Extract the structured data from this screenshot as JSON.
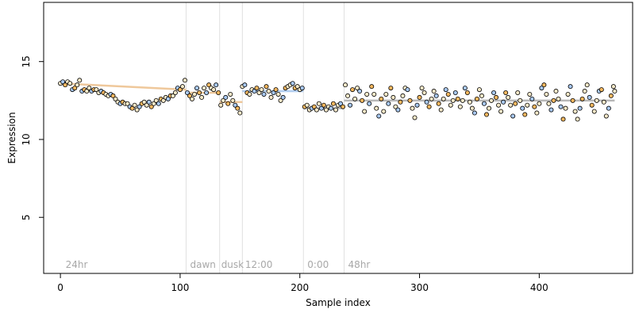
{
  "chart_data": {
    "type": "scatter",
    "title": "",
    "xlabel": "Sample index",
    "ylabel": "Expression",
    "xlim": [
      -14,
      478
    ],
    "ylim": [
      1.4,
      18.8
    ],
    "xticks": [
      0,
      100,
      200,
      300,
      400
    ],
    "yticks": [
      5,
      10,
      15
    ],
    "grid": false,
    "vlines": [
      105,
      133,
      152,
      203,
      237
    ],
    "annotations": [
      {
        "x": 3,
        "label": "24hr"
      },
      {
        "x": 107,
        "label": "dawn"
      },
      {
        "x": 133,
        "label": "dusk"
      },
      {
        "x": 153,
        "label": "12:00"
      },
      {
        "x": 205,
        "label": "0:00"
      },
      {
        "x": 239,
        "label": "48hr"
      }
    ],
    "colors": {
      "point_outline": "#000000",
      "point_fill_light": "#f4e8c8",
      "point_fill_orange": "#f4b860",
      "point_fill_blue": "#a8c8f0",
      "vline": "#e0e0e0",
      "annotation_text": "#a8a8a8",
      "trend_orange": "#e8b070",
      "trend_blue": "#90b8e8",
      "trend_gray": "#9a9a9a"
    },
    "series": [
      {
        "segments": [
          {
            "x": [
              0,
              105
            ],
            "y": [
              13.6,
              13.2
            ],
            "color": "orange"
          },
          {
            "x": [
              105,
              133
            ],
            "y": [
              13.0,
              13.0
            ],
            "color": "orange"
          },
          {
            "x": [
              133,
              152
            ],
            "y": [
              12.4,
              12.4
            ],
            "color": "orange"
          },
          {
            "x": [
              152,
              203
            ],
            "y": [
              13.1,
              13.1
            ],
            "color": "blue"
          },
          {
            "x": [
              203,
              237
            ],
            "y": [
              12.0,
              12.0
            ],
            "color": "gray"
          },
          {
            "x": [
              237,
              463
            ],
            "y": [
              12.5,
              12.5
            ],
            "color": "gray"
          }
        ],
        "points": [
          [
            0,
            13.6
          ],
          [
            2,
            13.7
          ],
          [
            4,
            13.5
          ],
          [
            6,
            13.7
          ],
          [
            8,
            13.6
          ],
          [
            10,
            13.2
          ],
          [
            12,
            13.3
          ],
          [
            14,
            13.5
          ],
          [
            16,
            13.8
          ],
          [
            18,
            13.1
          ],
          [
            20,
            13.2
          ],
          [
            22,
            13.1
          ],
          [
            24,
            13.3
          ],
          [
            26,
            13.1
          ],
          [
            28,
            13.2
          ],
          [
            30,
            13.2
          ],
          [
            32,
            13.0
          ],
          [
            34,
            13.1
          ],
          [
            36,
            13.0
          ],
          [
            38,
            12.9
          ],
          [
            40,
            12.8
          ],
          [
            42,
            12.9
          ],
          [
            44,
            12.8
          ],
          [
            46,
            12.6
          ],
          [
            48,
            12.4
          ],
          [
            50,
            12.3
          ],
          [
            52,
            12.4
          ],
          [
            54,
            12.3
          ],
          [
            56,
            12.3
          ],
          [
            58,
            12.1
          ],
          [
            60,
            12.0
          ],
          [
            62,
            12.2
          ],
          [
            64,
            11.9
          ],
          [
            66,
            12.1
          ],
          [
            68,
            12.3
          ],
          [
            70,
            12.4
          ],
          [
            72,
            12.2
          ],
          [
            74,
            12.4
          ],
          [
            76,
            12.1
          ],
          [
            78,
            12.3
          ],
          [
            80,
            12.5
          ],
          [
            82,
            12.3
          ],
          [
            84,
            12.6
          ],
          [
            86,
            12.5
          ],
          [
            88,
            12.7
          ],
          [
            90,
            12.6
          ],
          [
            92,
            12.8
          ],
          [
            94,
            12.8
          ],
          [
            96,
            13.0
          ],
          [
            98,
            13.3
          ],
          [
            100,
            13.2
          ],
          [
            102,
            13.4
          ],
          [
            104,
            13.8
          ],
          [
            106,
            13.0
          ],
          [
            108,
            12.8
          ],
          [
            110,
            12.6
          ],
          [
            112,
            12.9
          ],
          [
            114,
            13.3
          ],
          [
            116,
            13.0
          ],
          [
            118,
            12.7
          ],
          [
            120,
            13.3
          ],
          [
            122,
            13.0
          ],
          [
            124,
            13.5
          ],
          [
            126,
            13.3
          ],
          [
            128,
            13.2
          ],
          [
            130,
            13.5
          ],
          [
            132,
            13.0
          ],
          [
            134,
            12.2
          ],
          [
            136,
            12.5
          ],
          [
            138,
            12.7
          ],
          [
            140,
            12.3
          ],
          [
            142,
            12.9
          ],
          [
            144,
            12.5
          ],
          [
            146,
            12.2
          ],
          [
            148,
            12.0
          ],
          [
            150,
            11.7
          ],
          [
            152,
            13.4
          ],
          [
            154,
            13.5
          ],
          [
            156,
            13.0
          ],
          [
            158,
            12.9
          ],
          [
            160,
            13.2
          ],
          [
            162,
            13.1
          ],
          [
            164,
            13.3
          ],
          [
            166,
            13.0
          ],
          [
            168,
            13.2
          ],
          [
            170,
            12.9
          ],
          [
            172,
            13.4
          ],
          [
            174,
            13.1
          ],
          [
            176,
            12.7
          ],
          [
            178,
            13.0
          ],
          [
            180,
            13.2
          ],
          [
            182,
            12.9
          ],
          [
            184,
            12.5
          ],
          [
            186,
            12.7
          ],
          [
            188,
            13.3
          ],
          [
            190,
            13.4
          ],
          [
            192,
            13.5
          ],
          [
            194,
            13.6
          ],
          [
            196,
            13.3
          ],
          [
            198,
            13.4
          ],
          [
            200,
            13.2
          ],
          [
            202,
            13.3
          ],
          [
            204,
            12.1
          ],
          [
            206,
            12.2
          ],
          [
            208,
            11.9
          ],
          [
            210,
            12.0
          ],
          [
            212,
            12.1
          ],
          [
            214,
            11.9
          ],
          [
            216,
            12.3
          ],
          [
            218,
            12.0
          ],
          [
            220,
            12.2
          ],
          [
            222,
            11.9
          ],
          [
            224,
            12.1
          ],
          [
            226,
            12.0
          ],
          [
            228,
            12.3
          ],
          [
            230,
            11.9
          ],
          [
            232,
            12.2
          ],
          [
            234,
            12.3
          ],
          [
            236,
            12.1
          ],
          [
            238,
            13.5
          ],
          [
            240,
            12.8
          ],
          [
            242,
            12.2
          ],
          [
            244,
            13.2
          ],
          [
            246,
            12.6
          ],
          [
            248,
            13.3
          ],
          [
            250,
            13.1
          ],
          [
            252,
            12.5
          ],
          [
            254,
            11.8
          ],
          [
            256,
            12.9
          ],
          [
            258,
            12.3
          ],
          [
            260,
            13.4
          ],
          [
            262,
            12.9
          ],
          [
            264,
            12.0
          ],
          [
            266,
            11.5
          ],
          [
            268,
            12.6
          ],
          [
            270,
            11.8
          ],
          [
            272,
            12.9
          ],
          [
            274,
            12.3
          ],
          [
            276,
            13.3
          ],
          [
            278,
            12.7
          ],
          [
            280,
            12.1
          ],
          [
            282,
            11.9
          ],
          [
            284,
            12.4
          ],
          [
            286,
            12.8
          ],
          [
            288,
            13.3
          ],
          [
            290,
            13.2
          ],
          [
            292,
            12.5
          ],
          [
            294,
            12.0
          ],
          [
            296,
            11.4
          ],
          [
            298,
            12.2
          ],
          [
            300,
            12.7
          ],
          [
            302,
            13.3
          ],
          [
            304,
            13.0
          ],
          [
            306,
            12.4
          ],
          [
            308,
            12.1
          ],
          [
            310,
            12.6
          ],
          [
            312,
            13.1
          ],
          [
            314,
            12.8
          ],
          [
            316,
            12.3
          ],
          [
            318,
            11.9
          ],
          [
            320,
            12.6
          ],
          [
            322,
            13.2
          ],
          [
            324,
            12.9
          ],
          [
            326,
            12.2
          ],
          [
            328,
            12.5
          ],
          [
            330,
            13.0
          ],
          [
            332,
            12.6
          ],
          [
            334,
            12.1
          ],
          [
            336,
            12.5
          ],
          [
            338,
            13.3
          ],
          [
            340,
            13.0
          ],
          [
            342,
            12.4
          ],
          [
            344,
            12.0
          ],
          [
            346,
            11.7
          ],
          [
            348,
            12.6
          ],
          [
            350,
            13.2
          ],
          [
            352,
            12.8
          ],
          [
            354,
            12.3
          ],
          [
            356,
            11.6
          ],
          [
            358,
            12.0
          ],
          [
            360,
            12.5
          ],
          [
            362,
            13.0
          ],
          [
            364,
            12.7
          ],
          [
            366,
            12.2
          ],
          [
            368,
            11.8
          ],
          [
            370,
            12.4
          ],
          [
            372,
            13.0
          ],
          [
            374,
            12.7
          ],
          [
            376,
            12.2
          ],
          [
            378,
            11.5
          ],
          [
            380,
            12.3
          ],
          [
            382,
            13.0
          ],
          [
            384,
            12.5
          ],
          [
            386,
            12.0
          ],
          [
            388,
            11.6
          ],
          [
            390,
            12.2
          ],
          [
            392,
            12.9
          ],
          [
            394,
            12.6
          ],
          [
            396,
            12.1
          ],
          [
            398,
            11.7
          ],
          [
            400,
            12.3
          ],
          [
            402,
            13.3
          ],
          [
            404,
            13.5
          ],
          [
            406,
            12.9
          ],
          [
            408,
            12.3
          ],
          [
            410,
            11.9
          ],
          [
            412,
            12.5
          ],
          [
            414,
            13.1
          ],
          [
            416,
            12.6
          ],
          [
            418,
            12.1
          ],
          [
            420,
            11.3
          ],
          [
            422,
            12.0
          ],
          [
            424,
            12.9
          ],
          [
            426,
            13.4
          ],
          [
            428,
            12.5
          ],
          [
            430,
            11.8
          ],
          [
            432,
            11.3
          ],
          [
            434,
            12.0
          ],
          [
            436,
            12.6
          ],
          [
            438,
            13.1
          ],
          [
            440,
            13.5
          ],
          [
            442,
            12.7
          ],
          [
            444,
            12.2
          ],
          [
            446,
            11.8
          ],
          [
            448,
            12.5
          ],
          [
            450,
            13.1
          ],
          [
            452,
            13.2
          ],
          [
            454,
            12.4
          ],
          [
            456,
            11.5
          ],
          [
            458,
            12.0
          ],
          [
            460,
            12.8
          ],
          [
            462,
            13.4
          ],
          [
            463,
            13.1
          ]
        ]
      }
    ]
  }
}
